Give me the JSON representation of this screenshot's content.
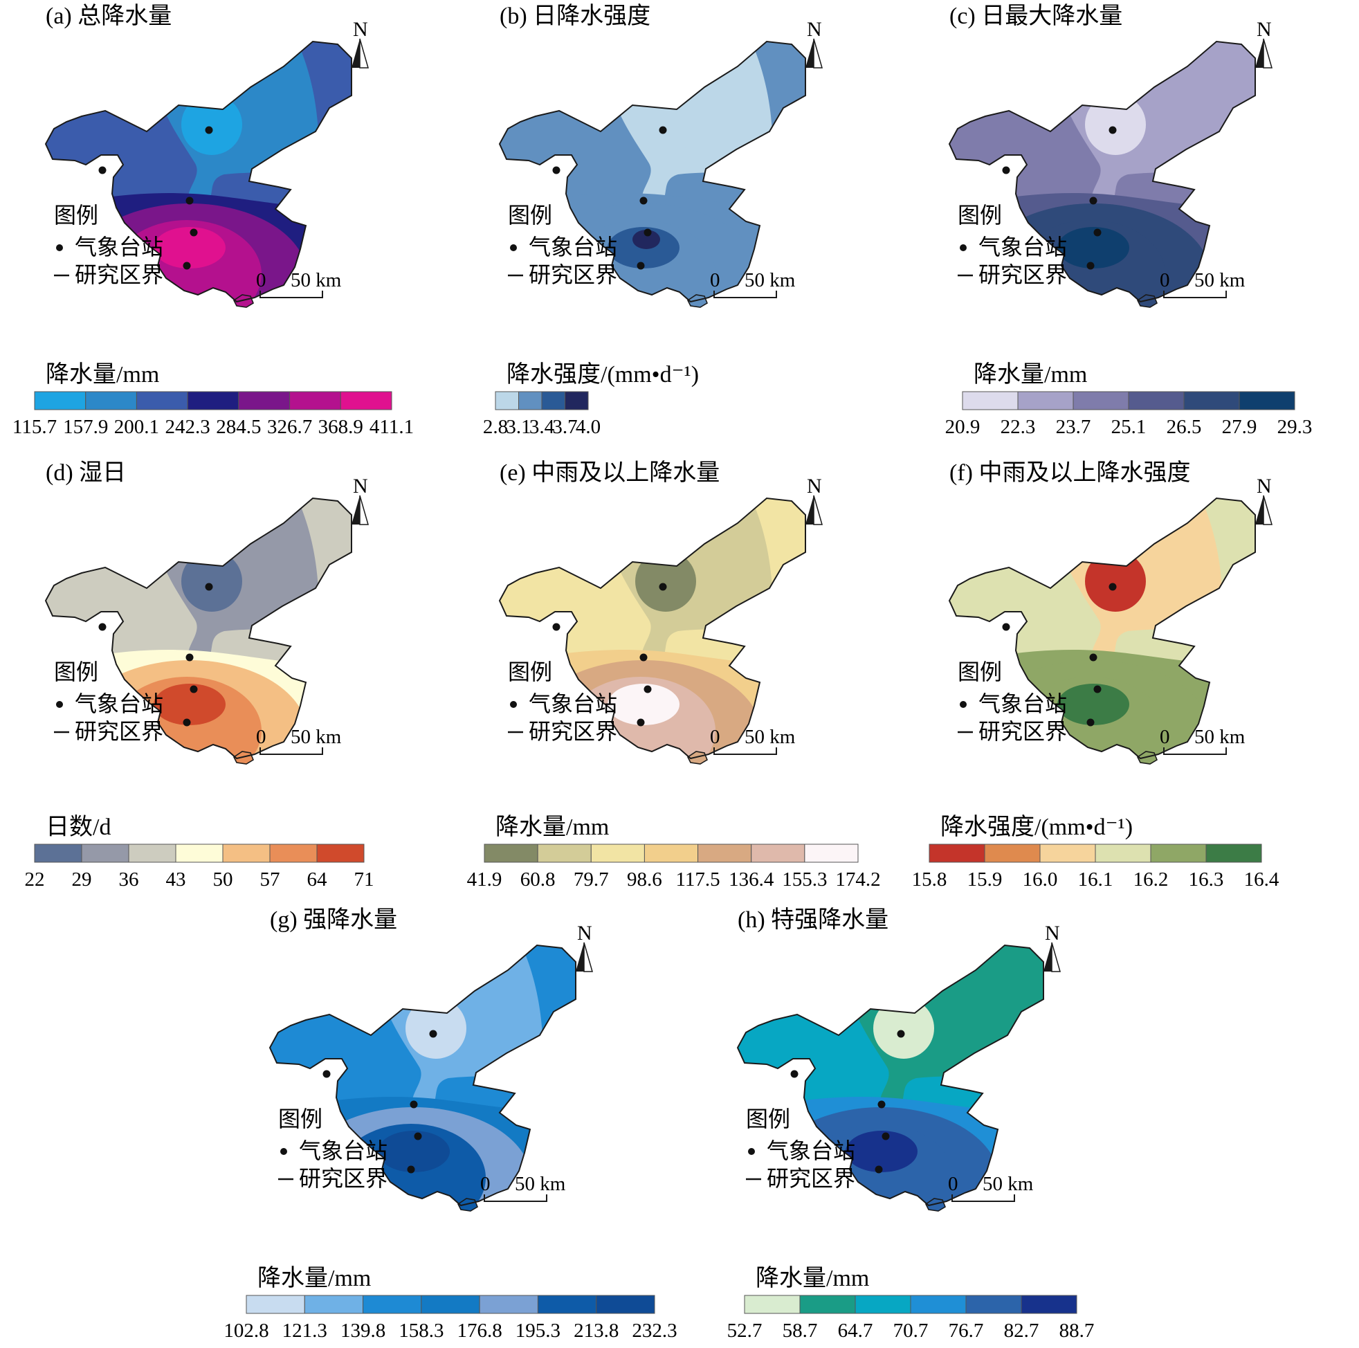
{
  "legend_labels": {
    "title": "图例",
    "station": "气象台站",
    "boundary": "研究区界"
  },
  "north_label": "N",
  "scale_bar": {
    "zero": "0",
    "end": "50 km"
  },
  "panels": [
    {
      "id": "a",
      "title": "(a) 总降水量",
      "legend_title": "降水量/mm",
      "ticks": [
        "115.7",
        "157.9",
        "200.1",
        "242.3",
        "284.5",
        "326.7",
        "368.9",
        "411.1"
      ],
      "colors": [
        "#1ea4e2",
        "#2c88c8",
        "#3b5cac",
        "#1f1e80",
        "#7a168a",
        "#b4118e",
        "#e0118f"
      ],
      "fills": {
        "base": "#3b5cac",
        "upper": "#2c88c8",
        "upper_east": "#3b5cac",
        "blob": "#1ea4e2",
        "band": "#1f1e80",
        "arc1": "#7a168a",
        "arc2": "#b4118e",
        "island": "#b4118e",
        "core": "#e0118f"
      }
    },
    {
      "id": "b",
      "title": "(b) 日降水强度",
      "legend_title": "降水强度/(mm•d⁻¹)",
      "ticks": [
        "2.8",
        "3.1",
        "3.4",
        "3.7",
        "4.0"
      ],
      "colors": [
        "#bcd7e8",
        "#6190c0",
        "#2a5a96",
        "#21275e"
      ],
      "fills": {
        "base": "#6190c0",
        "upper": "#bcd7e8",
        "upper_east": "#6190c0",
        "blob": "#bcd7e8",
        "band": "#6190c0",
        "arc1": "#6190c0",
        "arc2": "#6190c0",
        "island": "#6190c0",
        "core": "#2a5a96",
        "core2": "#21275e"
      }
    },
    {
      "id": "c",
      "title": "(c) 日最大降水量",
      "legend_title": "降水量/mm",
      "ticks": [
        "20.9",
        "22.3",
        "23.7",
        "25.1",
        "26.5",
        "27.9",
        "29.3"
      ],
      "colors": [
        "#dddbec",
        "#a6a2c8",
        "#7f7cab",
        "#555b8e",
        "#2f4a7a",
        "#0f3f6e"
      ],
      "fills": {
        "base": "#7f7cab",
        "upper": "#a6a2c8",
        "upper_east": "#a6a2c8",
        "blob": "#dddbec",
        "band": "#555b8e",
        "arc1": "#2f4a7a",
        "arc2": "#2f4a7a",
        "island": "#2f4a7a",
        "core": "#0f3f6e"
      }
    },
    {
      "id": "d",
      "title": "(d) 湿日",
      "legend_title": "日数/d",
      "ticks": [
        "22",
        "29",
        "36",
        "43",
        "50",
        "57",
        "64",
        "71"
      ],
      "colors": [
        "#5c7196",
        "#9599a8",
        "#cdccbf",
        "#fefcd8",
        "#f4bf84",
        "#e98e58",
        "#d04a2c"
      ],
      "fills": {
        "base": "#cdccbf",
        "upper": "#9599a8",
        "upper_east": "#cdccbf",
        "blob": "#5c7196",
        "band": "#fefcd8",
        "arc1": "#f4bf84",
        "arc2": "#e98e58",
        "island": "#e98e58",
        "core": "#d04a2c"
      }
    },
    {
      "id": "e",
      "title": "(e) 中雨及以上降水量",
      "legend_title": "降水量/mm",
      "ticks": [
        "41.9",
        "60.8",
        "79.7",
        "98.6",
        "117.5",
        "136.4",
        "155.3",
        "174.2"
      ],
      "colors": [
        "#838a66",
        "#d3cc98",
        "#f2e4a4",
        "#f2cf8c",
        "#d8a982",
        "#dfb9ab",
        "#fcf5f7"
      ],
      "fills": {
        "base": "#f2e4a4",
        "upper": "#d3cc98",
        "upper_east": "#f2e4a4",
        "blob": "#838a66",
        "band": "#f2cf8c",
        "arc1": "#d8a982",
        "arc2": "#dfb9ab",
        "island": "#d8a982",
        "core": "#fcf5f7"
      }
    },
    {
      "id": "f",
      "title": "(f) 中雨及以上降水强度",
      "legend_title": "降水强度/(mm•d⁻¹)",
      "ticks": [
        "15.8",
        "15.9",
        "16.0",
        "16.1",
        "16.2",
        "16.3",
        "16.4"
      ],
      "colors": [
        "#c4342a",
        "#df8a4e",
        "#f6d49c",
        "#dde1b0",
        "#8fa766",
        "#3c7c46"
      ],
      "fills": {
        "base": "#dde1b0",
        "upper": "#f6d49c",
        "upper_east": "#dde1b0",
        "blob": "#c4342a",
        "band": "#8fa766",
        "arc1": "#8fa766",
        "arc2": "#8fa766",
        "island": "#8fa766",
        "core": "#3c7c46"
      }
    },
    {
      "id": "g",
      "title": "(g) 强降水量",
      "legend_title": "降水量/mm",
      "ticks": [
        "102.8",
        "121.3",
        "139.8",
        "158.3",
        "176.8",
        "195.3",
        "213.8",
        "232.3"
      ],
      "colors": [
        "#c8dcf0",
        "#6fb1e6",
        "#1e8ad4",
        "#137ac4",
        "#7ba1d4",
        "#0e5ba8",
        "#0f4b96"
      ],
      "fills": {
        "base": "#1e8ad4",
        "upper": "#6fb1e6",
        "upper_east": "#1e8ad4",
        "blob": "#c8dcf0",
        "band": "#137ac4",
        "arc1": "#7ba1d4",
        "arc2": "#0e5ba8",
        "island": "#0e5ba8",
        "core": "#0f4b96"
      }
    },
    {
      "id": "h",
      "title": "(h) 特强降水量",
      "legend_title": "降水量/mm",
      "ticks": [
        "52.7",
        "58.7",
        "64.7",
        "70.7",
        "76.7",
        "82.7",
        "88.7"
      ],
      "colors": [
        "#d9ecd0",
        "#1a9c86",
        "#07a7c3",
        "#1f8fd6",
        "#2c64aa",
        "#17328c"
      ],
      "fills": {
        "base": "#07a7c3",
        "upper": "#1a9c86",
        "upper_east": "#1a9c86",
        "blob": "#d9ecd0",
        "band": "#1f8fd6",
        "arc1": "#2c64aa",
        "arc2": "#2c64aa",
        "island": "#2c64aa",
        "core": "#17328c"
      }
    }
  ]
}
